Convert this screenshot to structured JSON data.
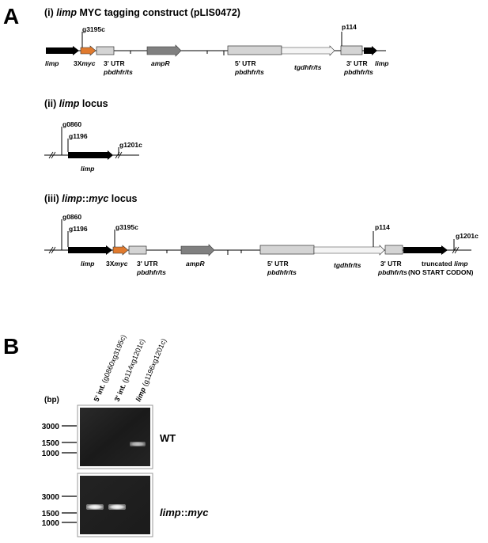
{
  "panel_a": {
    "letter": "A",
    "construct": {
      "num": "(i) ",
      "gene": "limp",
      "rest": " MYC tagging construct (pLIS0472)",
      "primer_g3195c": "g3195c",
      "primer_p114": "p114",
      "limp": "limp",
      "myc_prefix": "3X",
      "myc_gene": "myc",
      "utr3": "3' UTR",
      "pbdhfrts": "pbdhfr/ts",
      "ampr": "ampR",
      "utr5": "5' UTR",
      "tgdhfrts": "tgdhfr/ts"
    },
    "locus": {
      "num": "(ii) ",
      "gene": "limp",
      "rest": " locus",
      "primer_g0860": "g0860",
      "primer_g1196": "g1196",
      "primer_g1201c": "g1201c",
      "limp": "limp"
    },
    "myc_locus": {
      "num": "(iii) ",
      "gene": "limp",
      "sep": "::",
      "tag": "myc",
      "rest": " locus",
      "primer_g0860": "g0860",
      "primer_g1196": "g1196",
      "primer_g3195c": "g3195c",
      "primer_p114": "p114",
      "primer_g1201c": "g1201c",
      "limp": "limp",
      "myc_prefix": "3X",
      "myc_gene": "myc",
      "utr3": "3' UTR",
      "pbdhfrts": "pbdhfr/ts",
      "ampr": "ampR",
      "utr5": "5' UTR",
      "tgdhfrts": "tgdhfr/ts",
      "truncated": "truncated ",
      "truncated_gene": "limp",
      "no_start": "(NO START CODON)"
    }
  },
  "panel_b": {
    "letter": "B",
    "bp_label": "(bp)",
    "lanes": [
      {
        "main_a": "5' int.",
        "main_b": "",
        "sub": " (g0860xg3195c)"
      },
      {
        "main_a": "3' int.",
        "main_b": "",
        "sub": " (p114xg1201c)"
      },
      {
        "main_a": "",
        "main_b": "limp",
        "sub": " (g1196xg1201c)"
      }
    ],
    "markers_top": [
      "3000",
      "1500",
      "1000"
    ],
    "markers_bottom": [
      "3000",
      "1500",
      "1000"
    ],
    "wt_label": "WT",
    "myc_strain_gene": "limp",
    "myc_strain_sep": "::",
    "myc_strain_tag": "myc"
  },
  "colors": {
    "black_arrow": "#000000",
    "myc_orange": "#e07a2e",
    "ampr_gray": "#808080",
    "box_gray": "#d4d4d4",
    "gel_bg": "#151515"
  }
}
